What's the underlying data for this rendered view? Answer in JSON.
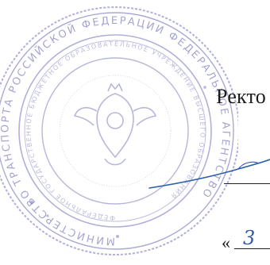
{
  "document": {
    "approval": {
      "title_fragment": "Ректо",
      "date_quote_open": "«",
      "date_day_handwritten": "3"
    }
  },
  "seal": {
    "color": "#6a6ab3",
    "outer_text": "МИНИСТЕРСТВО ТРАНСПОРТА РОССИЙСКОЙ ФЕДЕРАЦИИ ФЕДЕРАЛЬНОЕ АГЕНТСТВО",
    "inner_text": "ФЕДЕРАЛЬНОЕ ГОСУДАРСТВЕННОЕ БЮДЖЕТНОЕ ОБРАЗОВАТЕЛЬНОЕ УЧРЕЖДЕНИЕ ВЫСШЕГО ОБРАЗОВАНИЯ",
    "center_icon": "coat-of-arms-icon"
  },
  "signature": {
    "color": "#2b5fae"
  }
}
